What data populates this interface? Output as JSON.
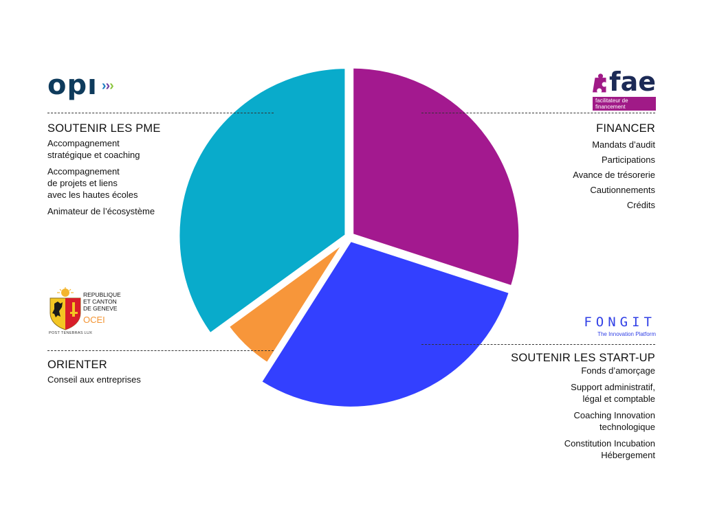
{
  "chart_data": {
    "type": "pie",
    "slices": [
      {
        "key": "financer",
        "value": 30,
        "color": "#a3198f"
      },
      {
        "key": "start-up",
        "value": 29,
        "color": "#3340ff"
      },
      {
        "key": "orienter",
        "value": 6,
        "color": "#f7963a"
      },
      {
        "key": "pme",
        "value": 35,
        "color": "#09abcb"
      }
    ]
  },
  "sections": {
    "pme": {
      "heading": "SOUTENIR LES PME",
      "items": [
        "Accompagnement\nstratégique et coaching",
        "Accompagnement\nde projets et liens\navec les hautes écoles",
        "Animateur de l’écosystème"
      ]
    },
    "orienter": {
      "heading": "ORIENTER",
      "items": [
        "Conseil aux entreprises"
      ]
    },
    "financer": {
      "heading": "FINANCER",
      "items": [
        "Mandats d’audit",
        "Participations",
        "Avance de trésorerie",
        "Cautionnements",
        "Crédits"
      ]
    },
    "startup": {
      "heading": "SOUTENIR LES START-UP",
      "items": [
        "Fonds d’amorçage",
        "Support administratif,\nlégal et comptable",
        "Coaching Innovation\ntechnologique",
        "Constitution Incubation\nHébergement"
      ]
    }
  },
  "logos": {
    "opi": {
      "word": "opı",
      "chevrons": [
        "›",
        "›",
        "›"
      ],
      "chevron_colors": [
        "#1e7fc1",
        "#6e3fa3",
        "#8cc63f"
      ]
    },
    "fae": {
      "word": "fae",
      "tagline": "facilitateur de financement",
      "icon": "puzzle-icon"
    },
    "fongit": {
      "word": "FONGIT",
      "tagline": "The Innovation Platform"
    },
    "geneve": {
      "text": "REPUBLIQUE\nET CANTON\nDE GENEVE",
      "ocei": "OCEI",
      "motto": "POST TENEBRAS LUX",
      "icon": "coat-of-arms-icon"
    }
  }
}
